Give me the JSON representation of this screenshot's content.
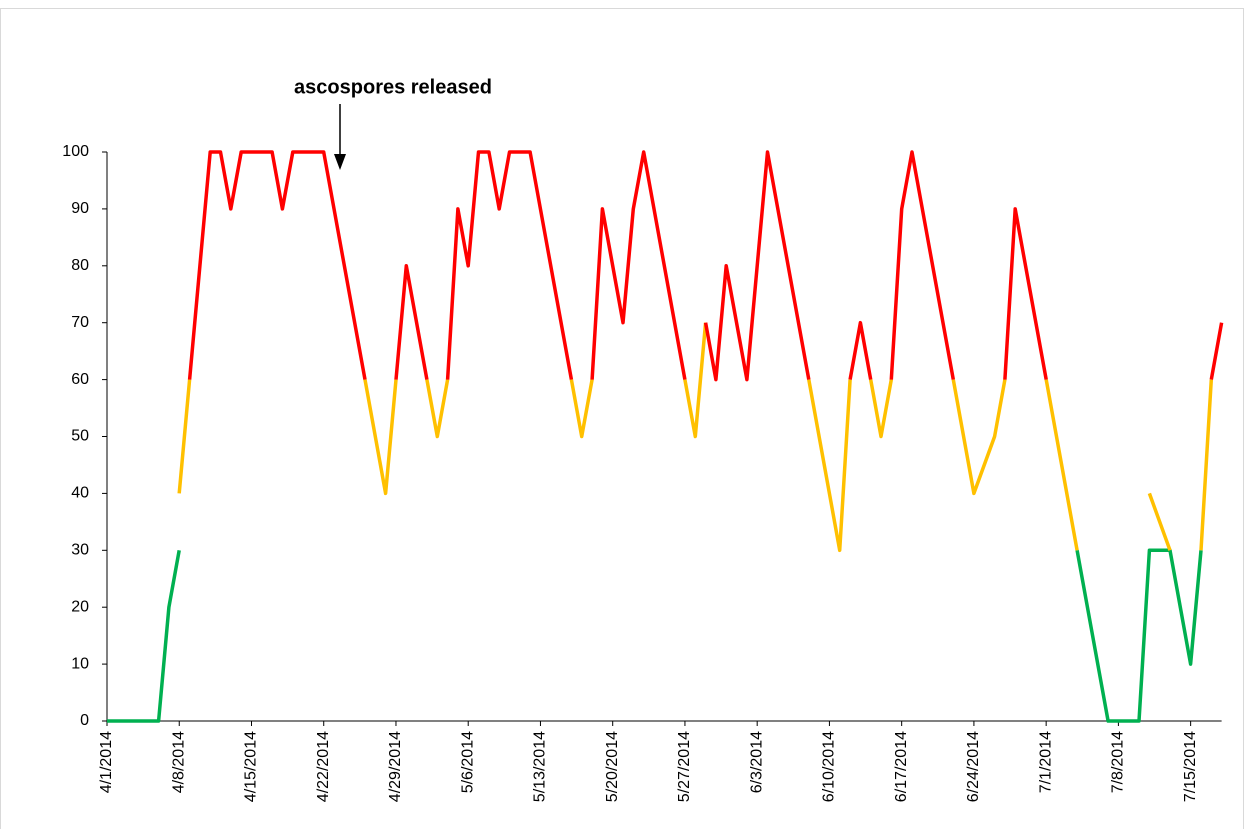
{
  "chart_data": {
    "type": "line",
    "annotation": "ascospores released",
    "x": [
      "4/1/2014",
      "4/6/2014",
      "4/7/2014",
      "4/8/2014",
      "4/9/2014",
      "4/11/2014",
      "4/12/2014",
      "4/13/2014",
      "4/14/2014",
      "4/17/2014",
      "4/18/2014",
      "4/19/2014",
      "4/22/2014",
      "4/26/2014",
      "4/28/2014",
      "4/29/2014",
      "4/30/2014",
      "5/2/2014",
      "5/3/2014",
      "5/4/2014",
      "5/5/2014",
      "5/6/2014",
      "5/7/2014",
      "5/8/2014",
      "5/9/2014",
      "5/10/2014",
      "5/12/2014",
      "5/16/2014",
      "5/17/2014",
      "5/18/2014",
      "5/19/2014",
      "5/21/2014",
      "5/22/2014",
      "5/23/2014",
      "5/27/2014",
      "5/28/2014",
      "5/29/2014",
      "5/30/2014",
      "5/31/2014",
      "6/2/2014",
      "6/4/2014",
      "6/8/2014",
      "6/11/2014",
      "6/12/2014",
      "6/13/2014",
      "6/14/2014",
      "6/15/2014",
      "6/16/2014",
      "6/17/2014",
      "6/18/2014",
      "6/22/2014",
      "6/24/2014",
      "6/26/2014",
      "6/27/2014",
      "6/28/2014",
      "7/1/2014",
      "7/4/2014",
      "7/7/2014",
      "7/10/2014",
      "7/11/2014",
      "7/13/2014",
      "7/15/2014",
      "7/16/2014",
      "7/17/2014",
      "7/18/2014"
    ],
    "series": [
      {
        "color": "#00b050",
        "values": [
          0,
          0,
          20,
          30,
          null,
          null,
          null,
          null,
          null,
          null,
          null,
          null,
          null,
          null,
          null,
          null,
          null,
          null,
          null,
          null,
          null,
          null,
          null,
          null,
          null,
          null,
          null,
          null,
          null,
          null,
          null,
          null,
          null,
          null,
          null,
          null,
          null,
          null,
          null,
          null,
          null,
          null,
          null,
          null,
          null,
          null,
          null,
          null,
          null,
          null,
          null,
          null,
          null,
          null,
          null,
          null,
          30,
          0,
          0,
          30,
          30,
          10,
          30,
          null,
          null
        ]
      },
      {
        "color": "#ffc000",
        "values": [
          null,
          null,
          null,
          40,
          60,
          null,
          null,
          null,
          null,
          null,
          null,
          null,
          null,
          60,
          40,
          60,
          null,
          60,
          50,
          60,
          null,
          null,
          null,
          null,
          null,
          null,
          null,
          60,
          50,
          60,
          null,
          null,
          null,
          null,
          60,
          50,
          70,
          null,
          null,
          null,
          null,
          60,
          30,
          60,
          null,
          60,
          50,
          60,
          null,
          null,
          60,
          40,
          50,
          60,
          null,
          60,
          30,
          null,
          null,
          40,
          30,
          null,
          30,
          60,
          null
        ]
      },
      {
        "color": "#ff0000",
        "values": [
          null,
          null,
          null,
          null,
          60,
          100,
          100,
          90,
          100,
          100,
          90,
          100,
          100,
          60,
          null,
          60,
          80,
          60,
          null,
          60,
          90,
          80,
          100,
          100,
          90,
          100,
          100,
          60,
          null,
          60,
          90,
          70,
          90,
          100,
          60,
          null,
          70,
          60,
          80,
          60,
          100,
          60,
          null,
          60,
          70,
          60,
          null,
          60,
          90,
          100,
          60,
          null,
          null,
          60,
          90,
          60,
          null,
          null,
          null,
          null,
          null,
          null,
          null,
          60,
          70
        ]
      }
    ],
    "xlim": [
      "4/1/2014",
      "7/18/2014"
    ],
    "xticks": [
      "4/1/2014",
      "4/8/2014",
      "4/15/2014",
      "4/22/2014",
      "4/29/2014",
      "5/6/2014",
      "5/13/2014",
      "5/20/2014",
      "5/27/2014",
      "6/3/2014",
      "6/10/2014",
      "6/17/2014",
      "6/24/2014",
      "7/1/2014",
      "7/8/2014",
      "7/15/2014"
    ],
    "ylim": [
      0,
      100
    ],
    "yticks": [
      0,
      10,
      20,
      30,
      40,
      50,
      60,
      70,
      80,
      90,
      100
    ],
    "grid": false
  }
}
